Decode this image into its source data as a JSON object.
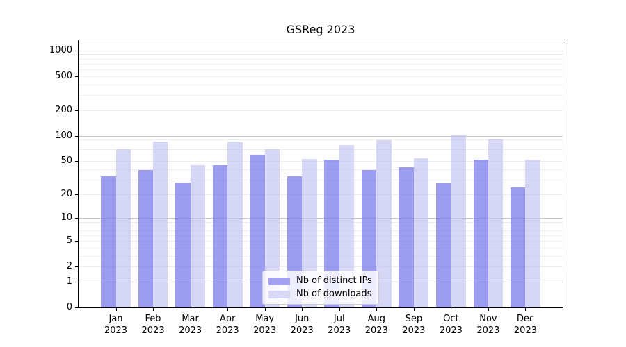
{
  "title": "GSReg 2023",
  "chart_data": {
    "type": "bar",
    "title": "GSReg 2023",
    "x_months": [
      "Jan",
      "Feb",
      "Mar",
      "Apr",
      "May",
      "Jun",
      "Jul",
      "Aug",
      "Sep",
      "Oct",
      "Nov",
      "Dec"
    ],
    "x_year": "2023",
    "series": [
      {
        "name": "Nb of distinct IPs",
        "color": "#a3a3f1",
        "values": [
          33,
          39,
          28,
          45,
          60,
          33,
          52,
          39,
          42,
          27,
          52,
          24
        ]
      },
      {
        "name": "Nb of downloads",
        "color": "#d8d8f6",
        "values": [
          70,
          85,
          45,
          84,
          70,
          53,
          78,
          89,
          54,
          101,
          90,
          52
        ]
      }
    ],
    "y_ticks": [
      0,
      1,
      2,
      5,
      10,
      20,
      50,
      100,
      200,
      500,
      1000
    ],
    "y_scale": "log-like log10(v+1), zero at baseline",
    "ylim": [
      0,
      1300
    ],
    "grid": {
      "major_lines": [
        1,
        10,
        100,
        1000
      ],
      "minor_lines": "2-9 per decade"
    },
    "legend": {
      "entries": [
        "Nb of distinct IPs",
        "Nb of downloads"
      ],
      "position": "lower center inside plot"
    }
  },
  "colors": {
    "bar_distinct_ips": "#a3a3f1",
    "bar_downloads": "#d8d8f6",
    "grid_major": "#c9c9c9",
    "grid_minor": "#ededed",
    "axis": "#000000",
    "background": "#ffffff"
  }
}
